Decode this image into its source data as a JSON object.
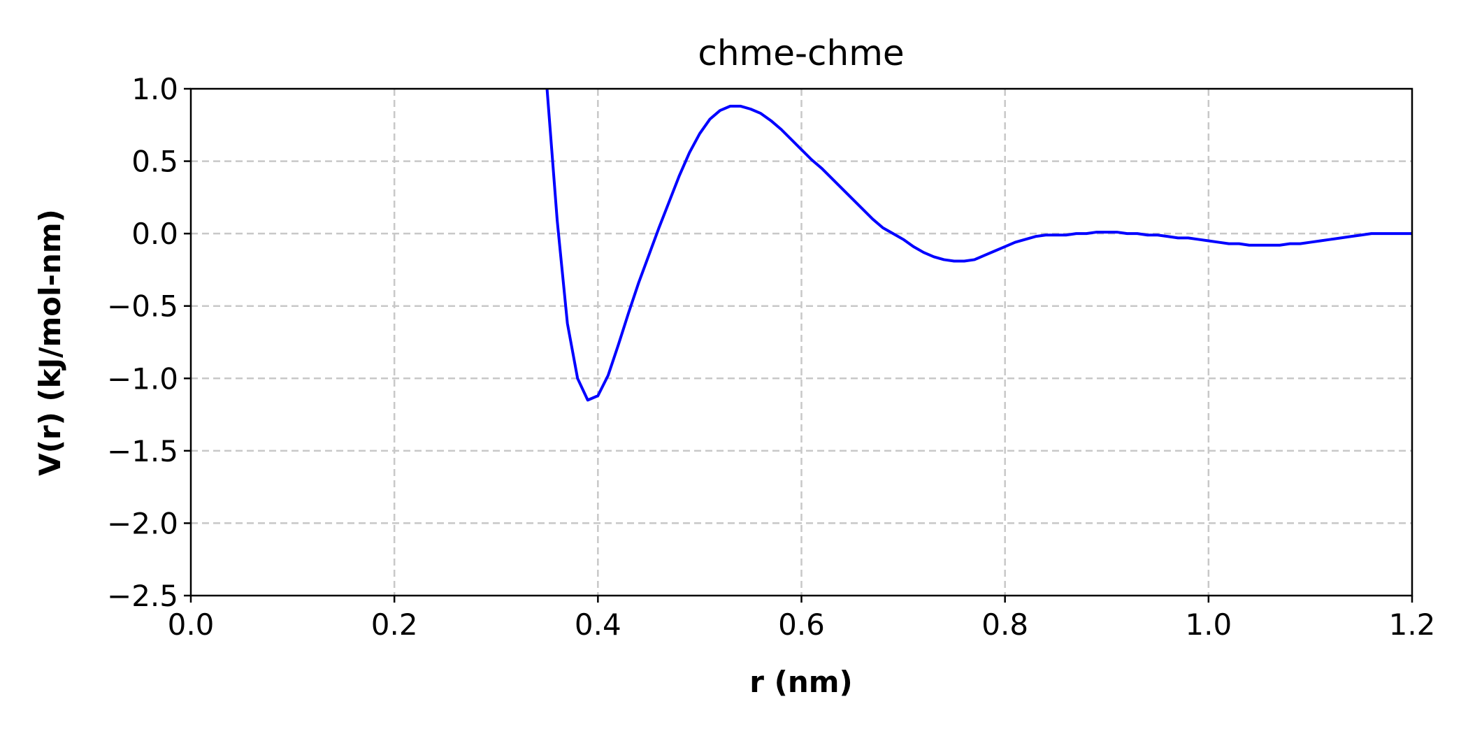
{
  "chart_data": {
    "type": "line",
    "title": "chme-chme",
    "xlabel": "r (nm)",
    "ylabel": "V(r)  (kJ/mol-nm)",
    "xlim": [
      0.0,
      1.2
    ],
    "ylim": [
      -2.5,
      1.0
    ],
    "xticks": [
      "0.0",
      "0.2",
      "0.4",
      "0.6",
      "0.8",
      "1.0",
      "1.2"
    ],
    "yticks": [
      "1.0",
      "0.5",
      "0.0",
      "−0.5",
      "−1.0",
      "−1.5",
      "−2.0",
      "−2.5"
    ],
    "grid": true,
    "grid_style": "dashed",
    "series": [
      {
        "color": "#0000ff",
        "x": [
          0.35,
          0.36,
          0.37,
          0.38,
          0.39,
          0.4,
          0.41,
          0.42,
          0.43,
          0.44,
          0.45,
          0.46,
          0.47,
          0.48,
          0.49,
          0.5,
          0.51,
          0.52,
          0.53,
          0.54,
          0.55,
          0.56,
          0.57,
          0.58,
          0.59,
          0.6,
          0.61,
          0.62,
          0.63,
          0.64,
          0.65,
          0.66,
          0.67,
          0.68,
          0.69,
          0.7,
          0.71,
          0.72,
          0.73,
          0.74,
          0.75,
          0.76,
          0.77,
          0.78,
          0.79,
          0.8,
          0.81,
          0.82,
          0.83,
          0.84,
          0.85,
          0.86,
          0.87,
          0.88,
          0.89,
          0.9,
          0.91,
          0.92,
          0.93,
          0.94,
          0.95,
          0.96,
          0.97,
          0.98,
          0.99,
          1.0,
          1.01,
          1.02,
          1.03,
          1.04,
          1.05,
          1.06,
          1.07,
          1.08,
          1.09,
          1.1,
          1.11,
          1.12,
          1.13,
          1.14,
          1.15,
          1.16,
          1.17,
          1.18,
          1.19,
          1.2
        ],
        "y": [
          1.0,
          0.09,
          -0.62,
          -1.0,
          -1.15,
          -1.12,
          -0.98,
          -0.77,
          -0.55,
          -0.34,
          -0.15,
          0.04,
          0.22,
          0.4,
          0.56,
          0.69,
          0.79,
          0.85,
          0.88,
          0.88,
          0.86,
          0.83,
          0.78,
          0.72,
          0.65,
          0.58,
          0.51,
          0.45,
          0.38,
          0.31,
          0.24,
          0.17,
          0.1,
          0.04,
          0.0,
          -0.04,
          -0.09,
          -0.13,
          -0.16,
          -0.18,
          -0.19,
          -0.19,
          -0.18,
          -0.15,
          -0.12,
          -0.09,
          -0.06,
          -0.04,
          -0.02,
          -0.01,
          -0.01,
          -0.01,
          0.0,
          0.0,
          0.01,
          0.01,
          0.01,
          0.0,
          0.0,
          -0.01,
          -0.01,
          -0.02,
          -0.03,
          -0.03,
          -0.04,
          -0.05,
          -0.06,
          -0.07,
          -0.07,
          -0.08,
          -0.08,
          -0.08,
          -0.08,
          -0.07,
          -0.07,
          -0.06,
          -0.05,
          -0.04,
          -0.03,
          -0.02,
          -0.01,
          0.0,
          0.0,
          0.0,
          0.0,
          0.0
        ]
      }
    ]
  }
}
